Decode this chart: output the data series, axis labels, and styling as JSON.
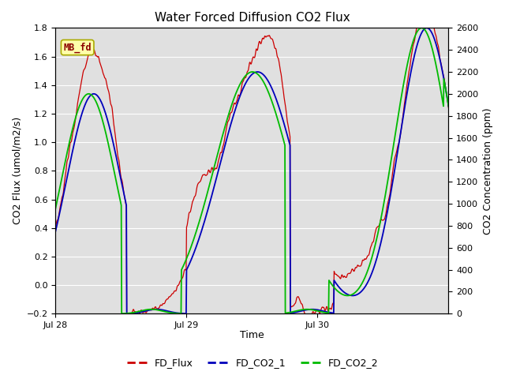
{
  "title": "Water Forced Diffusion CO2 Flux",
  "ylabel_left": "CO2 Flux (umol/m2/s)",
  "ylabel_right": "CO2 Concentration (ppm)",
  "xlabel": "Time",
  "ylim_left": [
    -0.2,
    1.8
  ],
  "ylim_right": [
    0,
    2600
  ],
  "yticks_left": [
    -0.2,
    0.0,
    0.2,
    0.4,
    0.6,
    0.8,
    1.0,
    1.2,
    1.4,
    1.6,
    1.8
  ],
  "yticks_right": [
    0,
    200,
    400,
    600,
    800,
    1000,
    1200,
    1400,
    1600,
    1800,
    2000,
    2200,
    2400,
    2600
  ],
  "xtick_positions": [
    0,
    24,
    48
  ],
  "xtick_labels": [
    "Jul 28",
    "Jul 29",
    "Jul 30"
  ],
  "xlabel_extra": "Time",
  "bg_color": "#e0e0e0",
  "line_flux_color": "#cc0000",
  "line_co2_1_color": "#0000bb",
  "line_co2_2_color": "#00bb00",
  "label_box_text": "MB_fd",
  "label_box_bg": "#ffffaa",
  "label_box_edge": "#aaaa00",
  "label_box_text_color": "#8b0000",
  "legend_labels": [
    "FD_Flux",
    "FD_CO2_1",
    "FD_CO2_2"
  ]
}
